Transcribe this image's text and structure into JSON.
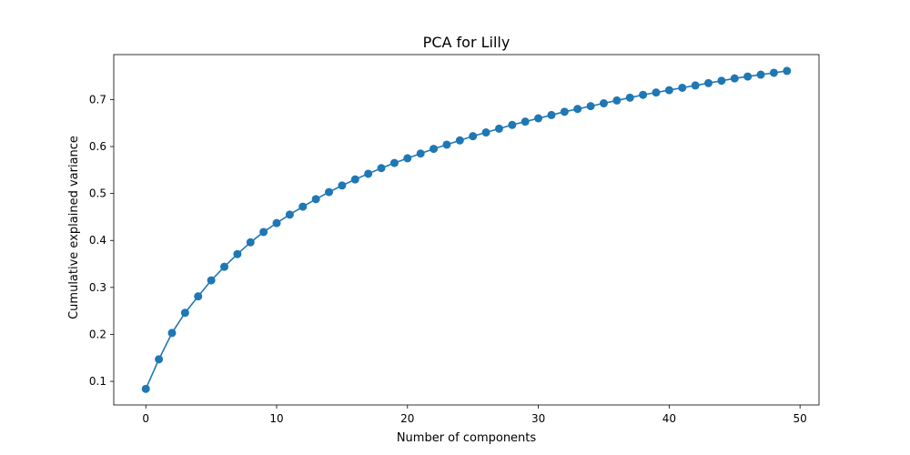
{
  "chart_data": {
    "type": "line",
    "title": "PCA for Lilly",
    "xlabel": "Number of components",
    "ylabel": "Cumulative explained variance",
    "xlim": [
      -2.45,
      51.45
    ],
    "ylim": [
      0.0498,
      0.7957
    ],
    "xticks": [
      0,
      10,
      20,
      30,
      40,
      50
    ],
    "yticks": [
      0.1,
      0.2,
      0.3,
      0.4,
      0.5,
      0.6,
      0.7
    ],
    "xtick_labels": [
      "0",
      "10",
      "20",
      "30",
      "40",
      "50"
    ],
    "ytick_labels": [
      "0.1",
      "0.2",
      "0.3",
      "0.4",
      "0.5",
      "0.6",
      "0.7"
    ],
    "grid": false,
    "line_color": "#1f77b4",
    "marker": "circle",
    "x": [
      0,
      1,
      2,
      3,
      4,
      5,
      6,
      7,
      8,
      9,
      10,
      11,
      12,
      13,
      14,
      15,
      16,
      17,
      18,
      19,
      20,
      21,
      22,
      23,
      24,
      25,
      26,
      27,
      28,
      29,
      30,
      31,
      32,
      33,
      34,
      35,
      36,
      37,
      38,
      39,
      40,
      41,
      42,
      43,
      44,
      45,
      46,
      47,
      48,
      49
    ],
    "series": [
      {
        "values": [
          0.084,
          0.147,
          0.203,
          0.246,
          0.281,
          0.315,
          0.344,
          0.371,
          0.396,
          0.418,
          0.437,
          0.455,
          0.472,
          0.488,
          0.503,
          0.517,
          0.53,
          0.542,
          0.554,
          0.565,
          0.575,
          0.585,
          0.595,
          0.604,
          0.613,
          0.622,
          0.63,
          0.638,
          0.646,
          0.653,
          0.66,
          0.667,
          0.674,
          0.68,
          0.686,
          0.692,
          0.698,
          0.704,
          0.71,
          0.715,
          0.72,
          0.725,
          0.73,
          0.735,
          0.74,
          0.745,
          0.749,
          0.753,
          0.757,
          0.761
        ]
      }
    ]
  }
}
